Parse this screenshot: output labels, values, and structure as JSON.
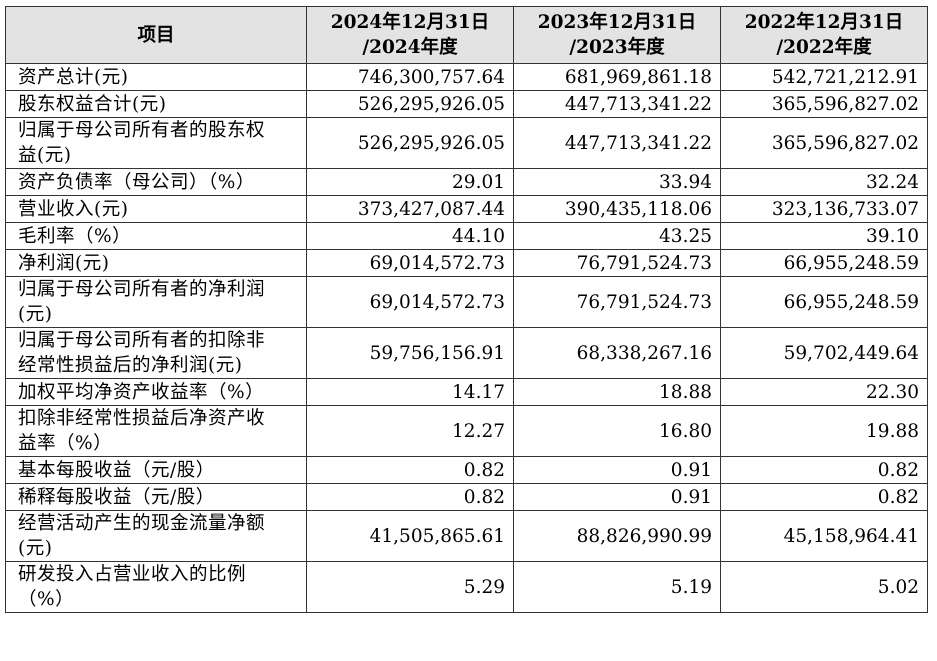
{
  "table": {
    "headers": [
      {
        "line1": "项目",
        "line2": ""
      },
      {
        "line1": "2024年12月31日",
        "line2": "/2024年度"
      },
      {
        "line1": "2023年12月31日",
        "line2": "/2023年度"
      },
      {
        "line1": "2022年12月31日",
        "line2": "/2022年度"
      }
    ],
    "rows": [
      {
        "label": [
          "资产总计(元)"
        ],
        "values": [
          "746,300,757.64",
          "681,969,861.18",
          "542,721,212.91"
        ]
      },
      {
        "label": [
          "股东权益合计(元)"
        ],
        "values": [
          "526,295,926.05",
          "447,713,341.22",
          "365,596,827.02"
        ]
      },
      {
        "label": [
          "归属于母公司所有者的股东权",
          "益(元)"
        ],
        "values": [
          "526,295,926.05",
          "447,713,341.22",
          "365,596,827.02"
        ]
      },
      {
        "label": [
          "资产负债率（母公司）（%）"
        ],
        "values": [
          "29.01",
          "33.94",
          "32.24"
        ]
      },
      {
        "label": [
          "营业收入(元)"
        ],
        "values": [
          "373,427,087.44",
          "390,435,118.06",
          "323,136,733.07"
        ]
      },
      {
        "label": [
          "毛利率（%）"
        ],
        "values": [
          "44.10",
          "43.25",
          "39.10"
        ]
      },
      {
        "label": [
          "净利润(元)"
        ],
        "values": [
          "69,014,572.73",
          "76,791,524.73",
          "66,955,248.59"
        ]
      },
      {
        "label": [
          "归属于母公司所有者的净利润",
          "(元)"
        ],
        "values": [
          "69,014,572.73",
          "76,791,524.73",
          "66,955,248.59"
        ]
      },
      {
        "label": [
          "归属于母公司所有者的扣除非",
          "经常性损益后的净利润(元)"
        ],
        "values": [
          "59,756,156.91",
          "68,338,267.16",
          "59,702,449.64"
        ]
      },
      {
        "label": [
          "加权平均净资产收益率（%）"
        ],
        "values": [
          "14.17",
          "18.88",
          "22.30"
        ]
      },
      {
        "label": [
          "扣除非经常性损益后净资产收",
          "益率（%）"
        ],
        "values": [
          "12.27",
          "16.80",
          "19.88"
        ]
      },
      {
        "label": [
          "基本每股收益（元/股）"
        ],
        "values": [
          "0.82",
          "0.91",
          "0.82"
        ]
      },
      {
        "label": [
          "稀释每股收益（元/股）"
        ],
        "values": [
          "0.82",
          "0.91",
          "0.82"
        ]
      },
      {
        "label": [
          "经营活动产生的现金流量净额",
          "(元)"
        ],
        "values": [
          "41,505,865.61",
          "88,826,990.99",
          "45,158,964.41"
        ]
      },
      {
        "label": [
          "研发投入占营业收入的比例",
          "（%）"
        ],
        "values": [
          "5.29",
          "5.19",
          "5.02"
        ]
      }
    ]
  }
}
